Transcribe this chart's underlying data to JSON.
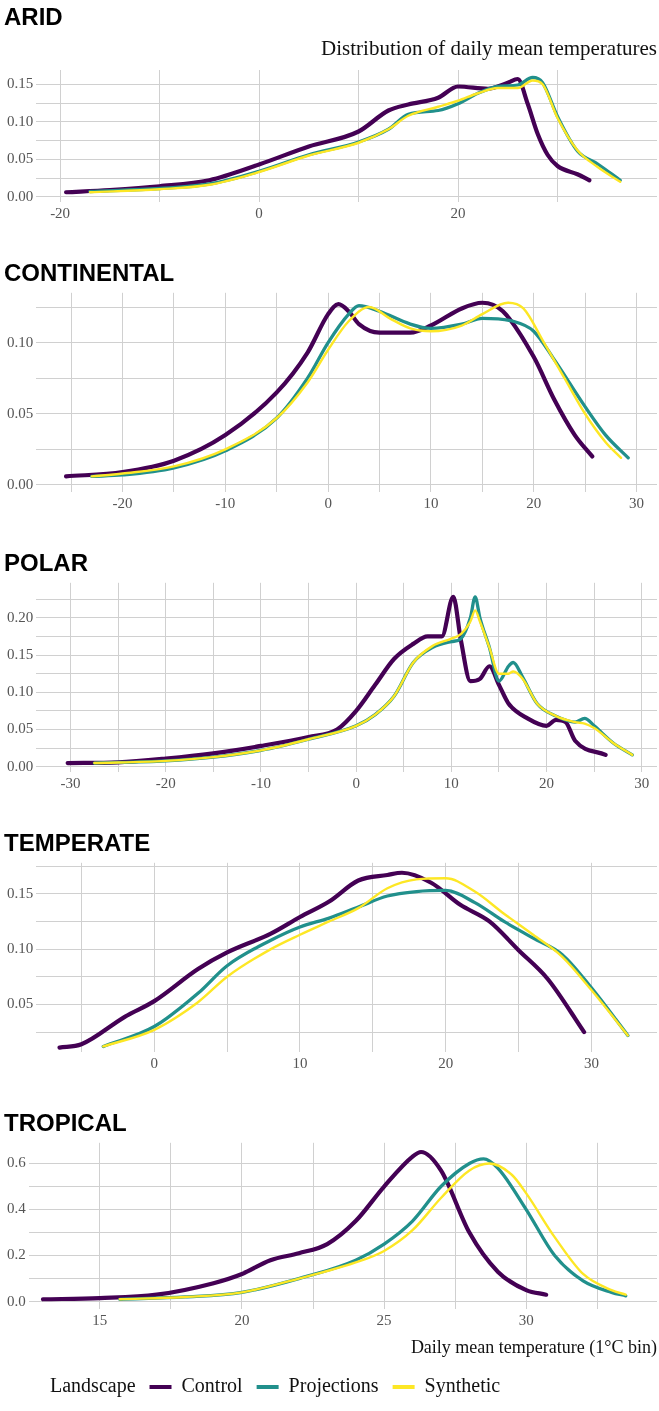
{
  "chart_data": [
    {
      "type": "line",
      "title": "ARID",
      "subtitle": "Distribution of daily mean temperatures",
      "grid": true,
      "legend": false,
      "xlim": [
        -22.4,
        40
      ],
      "xticks": [
        -20,
        {
          "value": -10,
          "label": null
        },
        0,
        {
          "value": 10,
          "label": null
        },
        20,
        {
          "value": 30,
          "label": null
        }
      ],
      "ylim": [
        -0.007,
        0.169
      ],
      "yticks": [
        {
          "value": 0,
          "label": "0.00"
        },
        {
          "value": 0.025,
          "label": null
        },
        {
          "value": 0.05,
          "label": "0.05"
        },
        {
          "value": 0.075,
          "label": null
        },
        {
          "value": 0.1,
          "label": "0.10"
        },
        {
          "value": 0.125,
          "label": null
        },
        {
          "value": 0.15,
          "label": "0.15"
        }
      ],
      "series": [
        {
          "color": "#440154",
          "x": [
            -19.4,
            -15,
            -10,
            -5,
            0,
            5,
            10,
            13,
            15,
            18,
            20,
            23,
            25,
            26,
            27,
            28,
            29,
            30,
            32,
            33.2
          ],
          "values": [
            0.006,
            0.009,
            0.014,
            0.022,
            0.043,
            0.067,
            0.087,
            0.115,
            0.123,
            0.132,
            0.147,
            0.144,
            0.152,
            0.157,
            0.124,
            0.084,
            0.056,
            0.041,
            0.03,
            0.022
          ]
        },
        {
          "color": "#21908c",
          "x": [
            -17,
            -10,
            -5,
            0,
            5,
            10,
            13,
            15,
            18,
            20,
            22,
            24,
            26,
            27.5,
            28.5,
            30,
            32,
            34,
            36.3
          ],
          "values": [
            0.007,
            0.011,
            0.017,
            0.034,
            0.056,
            0.073,
            0.09,
            0.11,
            0.115,
            0.124,
            0.138,
            0.147,
            0.149,
            0.159,
            0.152,
            0.107,
            0.061,
            0.044,
            0.022
          ]
        },
        {
          "color": "#fde725",
          "x": [
            -17,
            -10,
            -5,
            0,
            5,
            10,
            13,
            15,
            18,
            20,
            22,
            24,
            26,
            27.5,
            28.5,
            30,
            32,
            34,
            36.3
          ],
          "values": [
            0.006,
            0.01,
            0.016,
            0.033,
            0.055,
            0.072,
            0.09,
            0.108,
            0.12,
            0.128,
            0.138,
            0.145,
            0.145,
            0.155,
            0.15,
            0.105,
            0.062,
            0.04,
            0.02
          ]
        }
      ]
    },
    {
      "type": "line",
      "title": "CONTINENTAL",
      "grid": true,
      "legend": false,
      "xlim": [
        -28.4,
        32
      ],
      "xticks": [
        {
          "value": -25,
          "label": null
        },
        -20,
        {
          "value": -15,
          "label": null
        },
        -10,
        {
          "value": -5,
          "label": null
        },
        0,
        {
          "value": 5,
          "label": null
        },
        10,
        {
          "value": 15,
          "label": null
        },
        20,
        {
          "value": 25,
          "label": null
        },
        30
      ],
      "ylim": [
        -0.005,
        0.135
      ],
      "yticks": [
        {
          "value": 0,
          "label": "0.00"
        },
        {
          "value": 0.025,
          "label": null
        },
        {
          "value": 0.05,
          "label": "0.05"
        },
        {
          "value": 0.075,
          "label": null
        },
        {
          "value": 0.1,
          "label": "0.10"
        },
        {
          "value": 0.125,
          "label": null
        }
      ],
      "series": [
        {
          "color": "#440154",
          "x": [
            -25.5,
            -20,
            -15,
            -10,
            -5,
            -2,
            0,
            1,
            2,
            3,
            5,
            8,
            10,
            13,
            15,
            17,
            20,
            22,
            24,
            25.7
          ],
          "values": [
            0.006,
            0.009,
            0.017,
            0.035,
            0.065,
            0.093,
            0.12,
            0.127,
            0.122,
            0.113,
            0.107,
            0.107,
            0.112,
            0.124,
            0.128,
            0.122,
            0.09,
            0.06,
            0.035,
            0.02
          ]
        },
        {
          "color": "#21908c",
          "x": [
            -23,
            -20,
            -15,
            -10,
            -5,
            -2,
            0,
            2,
            3,
            5,
            8,
            10,
            13,
            15,
            18,
            20,
            22,
            25,
            27,
            29.2
          ],
          "values": [
            0.006,
            0.007,
            0.012,
            0.024,
            0.047,
            0.075,
            0.1,
            0.12,
            0.126,
            0.122,
            0.113,
            0.11,
            0.113,
            0.117,
            0.115,
            0.108,
            0.088,
            0.055,
            0.035,
            0.019
          ]
        },
        {
          "color": "#fde725",
          "x": [
            -23,
            -20,
            -15,
            -10,
            -5,
            -2,
            0,
            2,
            4,
            6,
            8,
            10,
            13,
            15,
            17.5,
            19,
            21,
            23,
            25,
            27,
            28.5
          ],
          "values": [
            0.006,
            0.008,
            0.013,
            0.025,
            0.047,
            0.072,
            0.095,
            0.115,
            0.125,
            0.117,
            0.11,
            0.108,
            0.112,
            0.12,
            0.128,
            0.124,
            0.1,
            0.075,
            0.05,
            0.03,
            0.019
          ]
        }
      ]
    },
    {
      "type": "line",
      "title": "POLAR",
      "grid": true,
      "legend": false,
      "xlim": [
        -33.6,
        31.6
      ],
      "xticks": [
        -30,
        {
          "value": -25,
          "label": null
        },
        -20,
        {
          "value": -15,
          "label": null
        },
        -10,
        {
          "value": -5,
          "label": null
        },
        0,
        {
          "value": 5,
          "label": null
        },
        10,
        {
          "value": 15,
          "label": null
        },
        20,
        {
          "value": 25,
          "label": null
        },
        30
      ],
      "ylim": [
        -0.007,
        0.247
      ],
      "yticks": [
        {
          "value": 0,
          "label": "0.00"
        },
        {
          "value": 0.025,
          "label": null
        },
        {
          "value": 0.05,
          "label": "0.05"
        },
        {
          "value": 0.075,
          "label": null
        },
        {
          "value": 0.1,
          "label": "0.10"
        },
        {
          "value": 0.125,
          "label": null
        },
        {
          "value": 0.15,
          "label": "0.15"
        },
        {
          "value": 0.175,
          "label": null
        },
        {
          "value": 0.2,
          "label": "0.20"
        },
        {
          "value": 0.225,
          "label": null
        }
      ],
      "series": [
        {
          "color": "#440154",
          "x": [
            -30.3,
            -25,
            -20,
            -15,
            -10,
            -5,
            -2,
            0,
            2,
            4,
            6,
            7.5,
            9,
            10.2,
            11,
            12,
            13,
            14,
            15,
            16,
            18,
            20,
            21,
            22,
            23,
            26.2
          ],
          "values": [
            0.005,
            0.006,
            0.011,
            0.018,
            0.028,
            0.04,
            0.05,
            0.075,
            0.11,
            0.145,
            0.165,
            0.175,
            0.175,
            0.228,
            0.17,
            0.115,
            0.118,
            0.135,
            0.11,
            0.085,
            0.065,
            0.055,
            0.063,
            0.06,
            0.035,
            0.016
          ]
        },
        {
          "color": "#21908c",
          "x": [
            -27.5,
            -20,
            -15,
            -10,
            -5,
            0,
            2,
            4,
            6,
            8,
            10,
            11,
            12,
            12.5,
            13,
            14,
            15,
            16,
            16.5,
            17.5,
            19,
            21,
            23,
            24,
            25,
            27,
            29
          ],
          "values": [
            0.005,
            0.008,
            0.013,
            0.022,
            0.037,
            0.055,
            0.07,
            0.095,
            0.14,
            0.16,
            0.168,
            0.172,
            0.2,
            0.228,
            0.2,
            0.16,
            0.115,
            0.135,
            0.14,
            0.12,
            0.085,
            0.068,
            0.06,
            0.065,
            0.055,
            0.032,
            0.016
          ]
        },
        {
          "color": "#fde725",
          "x": [
            -27.5,
            -20,
            -15,
            -10,
            -5,
            0,
            2,
            4,
            6,
            8,
            10,
            11,
            12,
            12.5,
            13,
            14,
            15,
            16,
            16.5,
            17.5,
            19,
            21,
            23,
            24,
            25,
            27,
            29
          ],
          "values": [
            0.005,
            0.008,
            0.013,
            0.022,
            0.037,
            0.055,
            0.07,
            0.095,
            0.14,
            0.162,
            0.172,
            0.178,
            0.195,
            0.21,
            0.195,
            0.16,
            0.125,
            0.125,
            0.128,
            0.118,
            0.085,
            0.068,
            0.06,
            0.058,
            0.052,
            0.032,
            0.016
          ]
        }
      ]
    },
    {
      "type": "line",
      "title": "TEMPERATE",
      "grid": true,
      "legend": false,
      "xlim": [
        -8.1,
        34.5
      ],
      "xticks": [
        {
          "value": -5,
          "label": null
        },
        0,
        {
          "value": 5,
          "label": null
        },
        10,
        {
          "value": 15,
          "label": null
        },
        20,
        {
          "value": 25,
          "label": null
        },
        30
      ],
      "ylim": [
        0.007,
        0.178
      ],
      "yticks": [
        {
          "value": 0.025,
          "label": null
        },
        {
          "value": 0.05,
          "label": "0.05"
        },
        {
          "value": 0.075,
          "label": null
        },
        {
          "value": 0.1,
          "label": "0.10"
        },
        {
          "value": 0.125,
          "label": null
        },
        {
          "value": 0.15,
          "label": "0.15"
        },
        {
          "value": 0.175,
          "label": null
        }
      ],
      "series": [
        {
          "color": "#440154",
          "x": [
            -6.5,
            -5,
            -2,
            0,
            3,
            5,
            8,
            10,
            12,
            14,
            16,
            17,
            19,
            21,
            23,
            25,
            27,
            29.5
          ],
          "values": [
            0.011,
            0.014,
            0.039,
            0.053,
            0.082,
            0.097,
            0.114,
            0.129,
            0.143,
            0.162,
            0.167,
            0.169,
            0.16,
            0.14,
            0.125,
            0.099,
            0.073,
            0.025
          ]
        },
        {
          "color": "#21908c",
          "x": [
            -3.5,
            0,
            3,
            5,
            8,
            10,
            12,
            14,
            16,
            18,
            20,
            22,
            24,
            26,
            28,
            30,
            32.5
          ],
          "values": [
            0.012,
            0.03,
            0.06,
            0.085,
            0.108,
            0.12,
            0.128,
            0.138,
            0.148,
            0.152,
            0.153,
            0.142,
            0.125,
            0.11,
            0.095,
            0.065,
            0.022
          ]
        },
        {
          "color": "#fde725",
          "x": [
            -3.5,
            0,
            3,
            5,
            8,
            10,
            12,
            14,
            16,
            18,
            20,
            22,
            24,
            26,
            28,
            30,
            32.5
          ],
          "values": [
            0.012,
            0.027,
            0.052,
            0.075,
            0.1,
            0.113,
            0.125,
            0.137,
            0.155,
            0.163,
            0.164,
            0.152,
            0.132,
            0.113,
            0.093,
            0.063,
            0.022
          ]
        }
      ]
    },
    {
      "type": "line",
      "title": "TROPICAL",
      "xlabel": "Daily mean temperature (1°C bin)",
      "legend_title": "Landscape",
      "grid": true,
      "legend": "bottom",
      "xlim": [
        12.5,
        34.6
      ],
      "xticks": [
        15,
        {
          "value": 17.5,
          "label": null
        },
        20,
        {
          "value": 22.5,
          "label": null
        },
        25,
        {
          "value": 27.5,
          "label": null
        },
        30,
        {
          "value": 32.5,
          "label": null
        }
      ],
      "ylim": [
        -0.034,
        0.69
      ],
      "yticks": [
        {
          "value": 0,
          "label": "0.0"
        },
        {
          "value": 0.1,
          "label": null
        },
        {
          "value": 0.2,
          "label": "0.2"
        },
        {
          "value": 0.3,
          "label": null
        },
        {
          "value": 0.4,
          "label": "0.4"
        },
        {
          "value": 0.5,
          "label": null
        },
        {
          "value": 0.6,
          "label": "0.6"
        }
      ],
      "series": [
        {
          "name": "Control",
          "color": "#440154",
          "x": [
            13,
            15,
            17,
            19,
            20,
            21,
            22,
            23,
            24,
            25,
            26,
            26.3,
            27,
            28,
            29,
            30,
            30.7
          ],
          "values": [
            0.01,
            0.015,
            0.03,
            0.08,
            0.12,
            0.18,
            0.21,
            0.25,
            0.35,
            0.5,
            0.63,
            0.65,
            0.57,
            0.3,
            0.13,
            0.05,
            0.03
          ]
        },
        {
          "name": "Projections",
          "color": "#21908c",
          "x": [
            15.7,
            18,
            20,
            22,
            24,
            25,
            26,
            27,
            28,
            28.5,
            29,
            30,
            31,
            32,
            33,
            33.5
          ],
          "values": [
            0.01,
            0.02,
            0.04,
            0.1,
            0.18,
            0.25,
            0.35,
            0.5,
            0.6,
            0.62,
            0.58,
            0.4,
            0.2,
            0.09,
            0.04,
            0.025
          ]
        },
        {
          "name": "Synthetic",
          "color": "#fde725",
          "x": [
            15.7,
            18,
            20,
            22,
            24,
            25,
            26,
            27,
            28,
            28.7,
            29.5,
            30,
            31,
            32,
            33,
            33.5
          ],
          "values": [
            0.01,
            0.02,
            0.04,
            0.1,
            0.17,
            0.22,
            0.31,
            0.45,
            0.57,
            0.6,
            0.55,
            0.47,
            0.28,
            0.12,
            0.05,
            0.03
          ]
        }
      ]
    }
  ]
}
